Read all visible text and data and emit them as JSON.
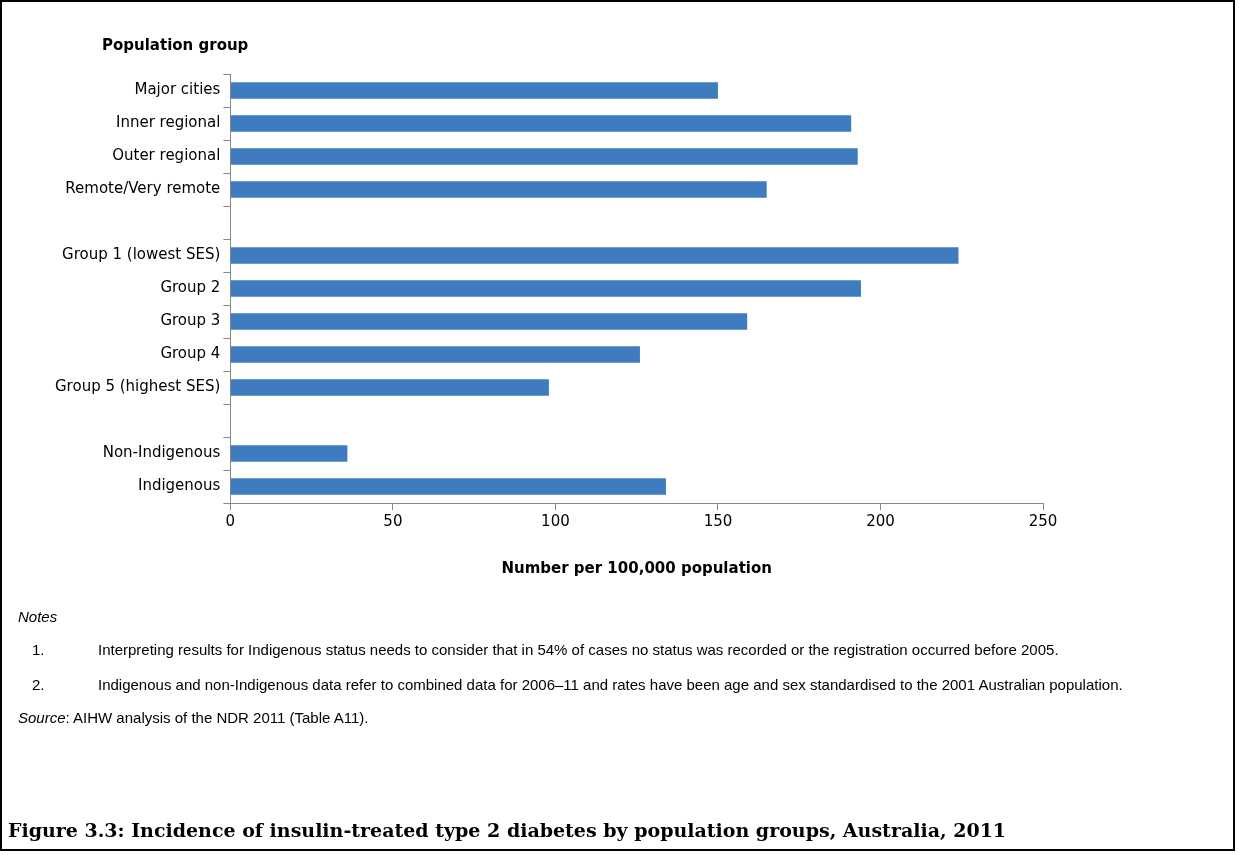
{
  "chart_data": {
    "type": "bar",
    "orientation": "horizontal",
    "title": "Figure 3.3: Incidence of insulin-treated type 2 diabetes by population groups, Australia, 2011",
    "ylabel": "Population group",
    "xlabel": "Number per 100,000 population",
    "categories": [
      "Major cities",
      "Inner regional",
      "Outer regional",
      "Remote/Very remote",
      null,
      "Group 1 (lowest SES)",
      "Group 2",
      "Group 3",
      "Group 4",
      "Group 5 (highest SES)",
      null,
      "Non-Indigenous",
      "Indigenous"
    ],
    "values": [
      150,
      191,
      193,
      165,
      null,
      224,
      194,
      159,
      126,
      98,
      null,
      36,
      134
    ],
    "color": "#3f7cbf",
    "xlim": [
      0,
      250
    ],
    "xticks": [
      0,
      50,
      100,
      150,
      200,
      250
    ],
    "grid": false,
    "legend": false,
    "annotations": [
      "Notes",
      "1.\tInterpreting results for Indigenous status needs to consider that in 54% of cases no status was recorded or the registration occurred before 2005.",
      "2.\tIndigenous and non-Indigenous data refer to combined data for 2006–11 and rates have been age and sex standardised to the 2001 Australian population.",
      "Source: AIHW analysis of the NDR 2011 (Table A11)."
    ]
  }
}
